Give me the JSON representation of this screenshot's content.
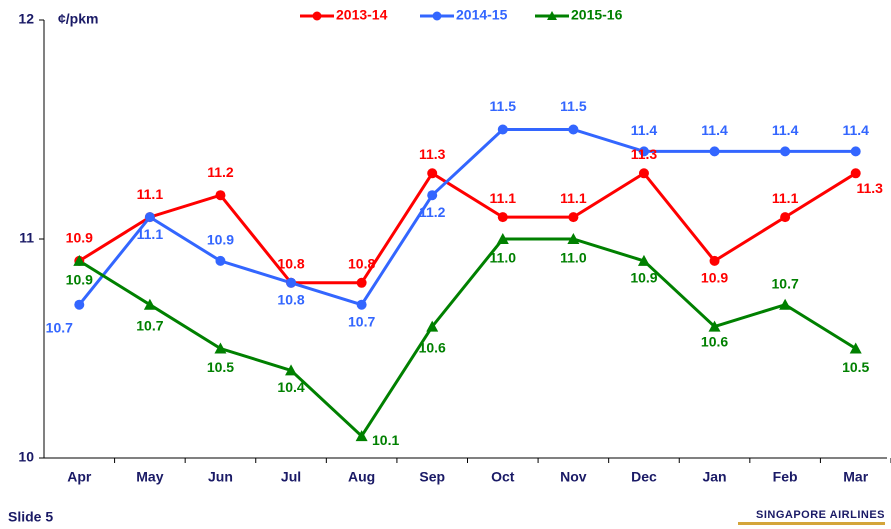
{
  "chart_data": {
    "type": "line",
    "y_label": "¢/pkm",
    "categories": [
      "Apr",
      "May",
      "Jun",
      "Jul",
      "Aug",
      "Sep",
      "Oct",
      "Nov",
      "Dec",
      "Jan",
      "Feb",
      "Mar"
    ],
    "series": [
      {
        "name": "2013-14",
        "color": "#ff0000",
        "marker": "circle",
        "values": [
          10.9,
          11.1,
          11.2,
          10.8,
          10.8,
          11.3,
          11.1,
          11.1,
          11.3,
          10.9,
          11.1,
          11.3
        ],
        "value_labels": [
          "10.9",
          "11.1",
          "11.2",
          "10.8",
          "10.8",
          "11.3",
          "11.1",
          "11.1",
          "11.3",
          "10.9",
          "11.1",
          "11.3"
        ]
      },
      {
        "name": "2014-15",
        "color": "#3366ff",
        "marker": "circle",
        "values": [
          10.7,
          11.1,
          10.9,
          10.8,
          10.7,
          11.2,
          11.5,
          11.5,
          11.4,
          11.4,
          11.4,
          11.4
        ],
        "value_labels": [
          "10.7",
          "11.1",
          "10.9",
          "10.8",
          "10.7",
          "11.2",
          "11.5",
          "11.5",
          "11.4",
          "11.4",
          "11.4",
          "11.4"
        ]
      },
      {
        "name": "2015-16",
        "color": "#008000",
        "marker": "triangle",
        "values": [
          10.9,
          10.7,
          10.5,
          10.4,
          10.1,
          10.6,
          11,
          11,
          10.9,
          10.6,
          10.7,
          10.5
        ],
        "value_labels": [
          "10.9",
          "10.7",
          "10.5",
          "10.4",
          "10.1",
          "10.6",
          "11.0",
          "11.0",
          "10.9",
          "10.6",
          "10.7",
          "10.5"
        ]
      }
    ],
    "ylim": [
      10,
      12
    ],
    "yticks": [
      10,
      11,
      12
    ],
    "grid": false
  },
  "footer": {
    "slide": "Slide 5",
    "logo": "SINGAPORE AIRLINES"
  }
}
